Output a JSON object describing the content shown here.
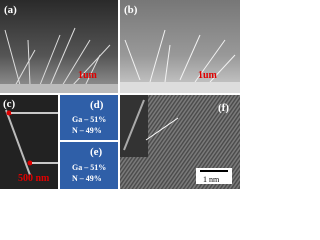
{
  "panels": [
    {
      "label": "(a)",
      "scale_bar": "1um"
    },
    {
      "label": "(b)",
      "scale_bar": "1um"
    },
    {
      "label": "(c)",
      "scale_bar": "500 nm"
    },
    {
      "label": "(d)",
      "composition": [
        "Ga – 51%",
        "N – 49%"
      ]
    },
    {
      "label": "(e)",
      "composition": [
        "Ga – 51%",
        "N – 49%"
      ]
    },
    {
      "label": "(f)",
      "scale_bar": "1 nm"
    }
  ]
}
